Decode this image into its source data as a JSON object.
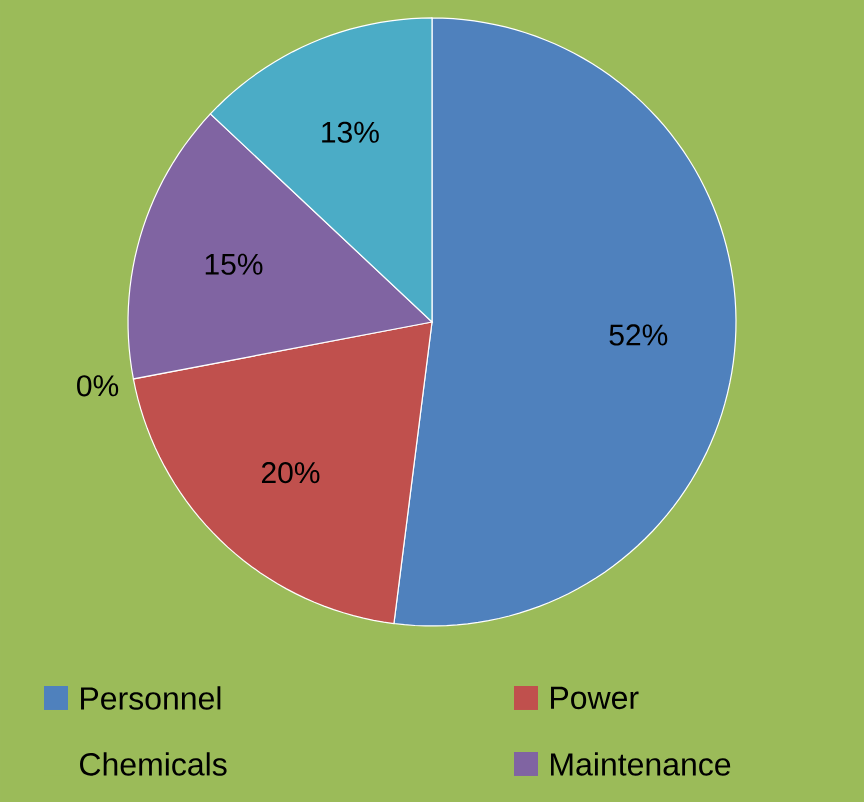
{
  "chart_data": {
    "type": "pie",
    "categories": [
      "Personnel",
      "Power",
      "Chemicals",
      "Maintenance",
      null
    ],
    "values": [
      52,
      20,
      0,
      15,
      13
    ],
    "colors": [
      "#4f81bd",
      "#c0504d",
      "#9bbb59",
      "#8064a2",
      "#4bacc6"
    ],
    "value_labels": [
      "52%",
      "20%",
      "0%",
      "15%",
      "13%"
    ],
    "legend": "bottom"
  }
}
